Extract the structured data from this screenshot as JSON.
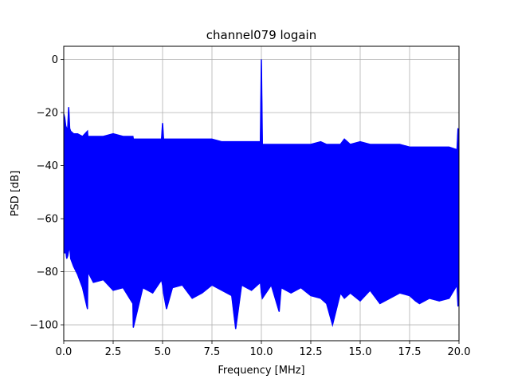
{
  "chart_data": {
    "type": "line",
    "title": "channel079 logain",
    "xlabel": "Frequency [MHz]",
    "ylabel": "PSD [dB]",
    "xlim": [
      0,
      20
    ],
    "ylim": [
      -106,
      5
    ],
    "grid": true,
    "x_ticks": [
      0,
      2.5,
      5,
      7.5,
      10,
      12.5,
      15,
      17.5,
      20
    ],
    "x_tick_labels": [
      "0.0",
      "2.5",
      "5.0",
      "7.5",
      "10.0",
      "12.5",
      "15.0",
      "17.5",
      "20.0"
    ],
    "y_ticks": [
      0,
      -20,
      -40,
      -60,
      -80,
      -100
    ],
    "y_tick_labels": [
      "0",
      "−20",
      "−40",
      "−60",
      "−80",
      "−100"
    ],
    "series": [
      {
        "color": "#0000ff",
        "x": [
          0.0,
          0.05,
          0.1,
          0.15,
          0.2,
          0.25,
          0.3,
          0.35,
          0.5,
          0.7,
          0.95,
          1.2,
          1.22,
          1.5,
          2.0,
          2.5,
          3.0,
          3.5,
          3.52,
          4.0,
          4.5,
          4.95,
          5.0,
          5.05,
          5.2,
          5.5,
          6.0,
          6.5,
          7.0,
          7.5,
          8.0,
          8.5,
          8.7,
          9.0,
          9.5,
          9.95,
          10.0,
          10.05,
          10.5,
          10.9,
          11.0,
          11.5,
          12.0,
          12.5,
          13.0,
          13.3,
          13.6,
          14.0,
          14.2,
          14.5,
          15.0,
          15.5,
          16.0,
          16.5,
          17.0,
          17.5,
          17.8,
          18.0,
          18.5,
          19.0,
          19.5,
          19.9,
          19.95,
          20.0
        ],
        "upper": [
          -20.5,
          -22,
          -25,
          -26,
          -26,
          -18,
          -26,
          -27,
          -28,
          -28,
          -29,
          -27,
          -29,
          -29,
          -29,
          -28,
          -29,
          -29,
          -30,
          -30,
          -30,
          -30,
          -24,
          -30,
          -30,
          -30,
          -30,
          -30,
          -30,
          -30,
          -31,
          -31,
          -31,
          -31,
          -31,
          -31,
          0,
          -32,
          -32,
          -32,
          -32,
          -32,
          -32,
          -32,
          -31,
          -32,
          -32,
          -32,
          -30,
          -32,
          -31,
          -32,
          -32,
          -32,
          -32,
          -33,
          -33,
          -33,
          -33,
          -33,
          -33,
          -34,
          -26,
          -34
        ],
        "lower": [
          -70,
          -73,
          -72,
          -75,
          -74,
          -72,
          -70,
          -75,
          -78,
          -81,
          -86,
          -94,
          -80,
          -84,
          -83,
          -87,
          -86,
          -92,
          -101,
          -86,
          -88,
          -83,
          -85,
          -88,
          -94,
          -86,
          -85,
          -90,
          -88,
          -85,
          -87,
          -89,
          -101.5,
          -85,
          -87,
          -84,
          -88,
          -90,
          -85,
          -95,
          -86,
          -88,
          -86,
          -89,
          -90,
          -92,
          -100,
          -88,
          -90,
          -88,
          -91,
          -87,
          -92,
          -90,
          -88,
          -89,
          -91,
          -92,
          -90,
          -91,
          -90,
          -85,
          -93,
          -90
        ]
      }
    ]
  }
}
